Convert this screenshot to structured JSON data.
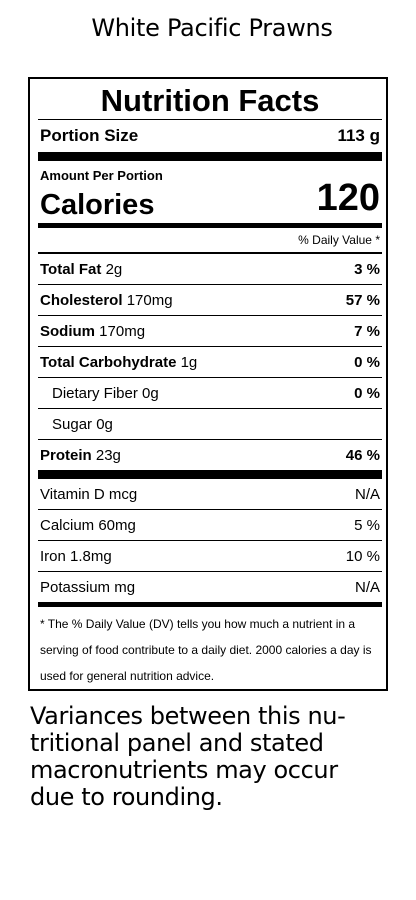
{
  "page_title": "White Pacific Prawns",
  "label": {
    "heading": "Nutrition Facts",
    "portion_size_label": "Portion Size",
    "portion_size_value": "113 g",
    "amount_per_portion": "Amount Per Portion",
    "calories_label": "Calories",
    "calories_value": "120",
    "dv_header": "% Daily Value *",
    "nutrients": [
      {
        "name": "Total Fat",
        "amount": "2g",
        "dv": "3 %"
      },
      {
        "name": "Cholesterol",
        "amount": "170mg",
        "dv": "57 %"
      },
      {
        "name": "Sodium",
        "amount": "170mg",
        "dv": "7 %"
      },
      {
        "name": "Total Carbohydrate",
        "amount": "1g",
        "dv": "0 %"
      },
      {
        "name": "Dietary Fiber",
        "amount": "0g",
        "dv": "0 %"
      },
      {
        "name": "Sugar",
        "amount": "0g",
        "dv": ""
      },
      {
        "name": "Protein",
        "amount": "23g",
        "dv": "46 %"
      }
    ],
    "vitamins": [
      {
        "label": "Vitamin D mcg",
        "dv": "N/A"
      },
      {
        "label": "Calcium 60mg",
        "dv": "5 %"
      },
      {
        "label": "Iron 1.8mg",
        "dv": "10 %"
      },
      {
        "label": "Potassium mg",
        "dv": "N/A"
      }
    ],
    "footnote": "* The % Daily Value (DV) tells you how much a nutrient in a serving of food contribute to a daily diet. 2000 calories a day is used for general nutrition advice."
  },
  "note": "Variances between this nu­tritional panel and stated macronutrients may occur due to rounding."
}
